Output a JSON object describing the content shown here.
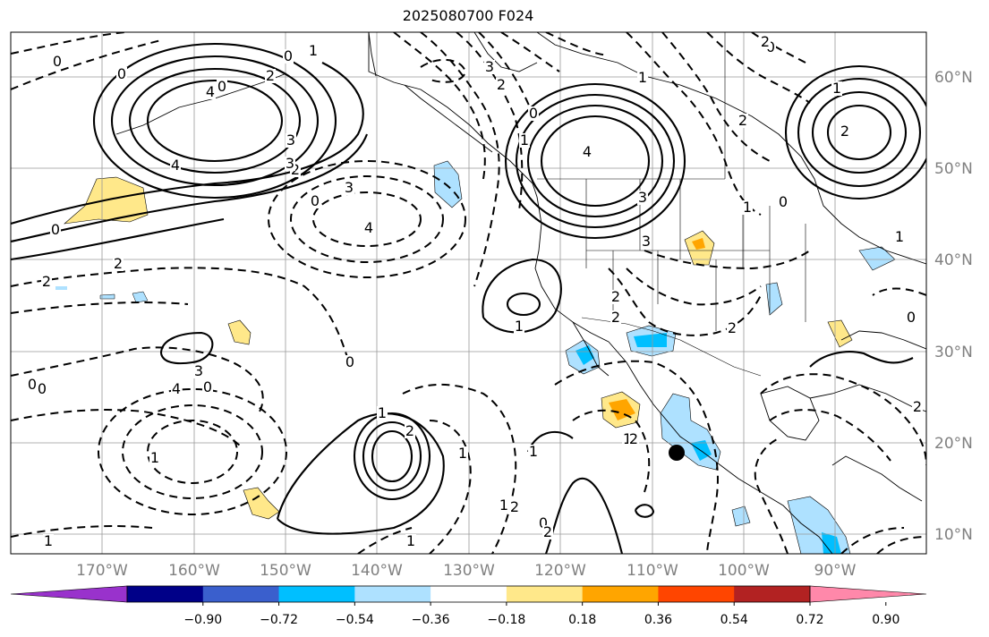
{
  "title": "2025080700 F024",
  "longitude_labels": [
    "170°W",
    "160°W",
    "150°W",
    "140°W",
    "130°W",
    "120°W",
    "110°W",
    "100°W",
    "90°W"
  ],
  "latitude_labels": [
    "60°N",
    "50°N",
    "40°N",
    "30°N",
    "20°N",
    "10°N"
  ],
  "colorbar": {
    "colors": [
      "#9932cc",
      "#000088",
      "#3a5fcd",
      "#00bfff",
      "#aee1ff",
      "#ffffff",
      "#ffe88a",
      "#ffa500",
      "#ff4500",
      "#b22222",
      "#ff88aa"
    ],
    "tick_labels": [
      "−0.90",
      "−0.72",
      "−0.54",
      "−0.36",
      "−0.18",
      "0.18",
      "0.36",
      "0.54",
      "0.72",
      "0.90"
    ]
  },
  "contour_labels": [
    "0",
    "0",
    "4",
    "3",
    "0",
    "2",
    "4",
    "3",
    "2",
    "2",
    "2",
    "3",
    "4",
    "0",
    "4",
    "2",
    "3",
    "2",
    "3",
    "1",
    "0",
    "0",
    "1",
    "2",
    "1",
    "1",
    "2",
    "0",
    "2",
    "2",
    "0",
    "1",
    "2",
    "0",
    "1",
    "0",
    "1",
    "4",
    "3",
    "3",
    "2",
    "2",
    "1",
    "2",
    "2",
    "0",
    "1",
    "1",
    "1",
    "1",
    "1",
    "0",
    "0",
    "1",
    "2",
    "1",
    "2",
    "0",
    "0"
  ],
  "marker": "storm-center-dot"
}
